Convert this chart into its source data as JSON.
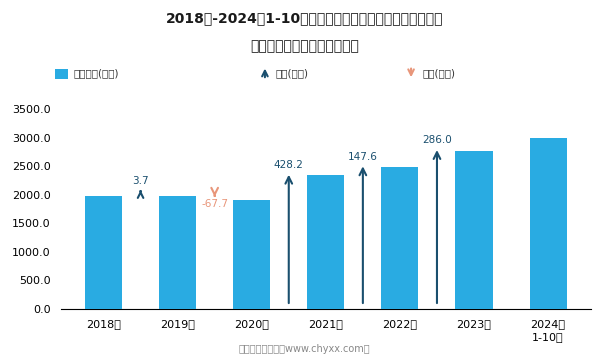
{
  "title_line1": "2018年-2024年1-10月全国铁路、船舶、航空航天和其他运",
  "title_line2": "输设备制造业出口货值统计图",
  "categories": [
    "2018年",
    "2019年",
    "2020年",
    "2021年",
    "2022年",
    "2023年",
    "2024年\n1-10月"
  ],
  "values": [
    1980.0,
    1983.7,
    1916.0,
    2344.2,
    2491.8,
    2777.8,
    3003.0
  ],
  "changes": [
    null,
    3.7,
    -67.7,
    428.2,
    147.6,
    286.0,
    null
  ],
  "bar_color": "#29ABE2",
  "increase_color": "#1A4F6E",
  "decrease_color": "#E8967A",
  "ylim": [
    0,
    3500
  ],
  "yticks": [
    0.0,
    500.0,
    1000.0,
    1500.0,
    2000.0,
    2500.0,
    3000.0,
    3500.0
  ],
  "legend_bar_label": "出口货值(亿元)",
  "legend_increase_label": "增加(亿元)",
  "legend_decrease_label": "减少(亿元)",
  "footnote": "制图：智研咨询（www.chyxx.com）"
}
